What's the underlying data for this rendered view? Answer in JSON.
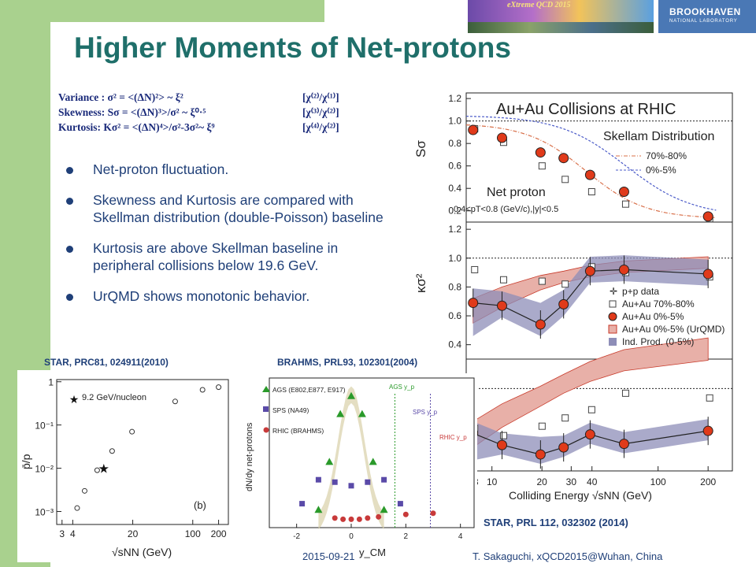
{
  "slide": {
    "title": "Higher Moments of Net-protons",
    "banner_text": "eXtreme QCD 2015",
    "logo": {
      "main": "BROOKHAVEN",
      "sub": "NATIONAL LABORATORY"
    },
    "formulas": [
      {
        "left": "Variance :   σ² = <(ΔN)²> ~ ξ²",
        "right": "[χ⁽²⁾/χ⁽¹⁾]"
      },
      {
        "left": "Skewness:  Sσ = <(ΔN)³>/σ² ~ ξ⁰·⁵",
        "right": "[χ⁽³⁾/χ⁽²⁾]"
      },
      {
        "left": "Kurtosis:  Kσ² = <(ΔN)⁴>/σ²-3σ²~ ξ⁹",
        "right": "[χ⁽⁴⁾/χ⁽²⁾]"
      }
    ],
    "bullets": [
      "Net-proton fluctuation.",
      "Skewness and Kurtosis are compared with Skellman distribution (double-Poisson) baseline",
      "Kurtosis are above Skellman baseline in peripheral collisions below 19.6 GeV.",
      "UrQMD shows monotonic behavior."
    ],
    "refs": {
      "left": "STAR, PRC81, 024911(2010)",
      "middle": "BRAHMS, PRL93, 102301(2004)",
      "right": "STAR, PRL 112, 032302 (2014)"
    },
    "footer": {
      "date": "2015-09-21",
      "author": "T. Sakaguchi, xQCD2015@Wuhan, China"
    }
  },
  "chart_data": [
    {
      "type": "scatter",
      "title": "Au+Au Collisions at RHIC",
      "annotations": [
        "Skellam Distribution",
        "Net proton",
        "0.4<pT<0.8 (GeV/c),|y|<0.5"
      ],
      "xlabel": "Colliding Energy √sNN (GeV)",
      "x_ticks": [
        "8",
        "10",
        "20",
        "30",
        "40",
        "100",
        "200"
      ],
      "panels": [
        {
          "ylabel": "Sσ",
          "yticks": [
            "0.2",
            "0.4",
            "0.6",
            "0.8",
            "1.0",
            "1.2"
          ],
          "ylim": [
            0.1,
            1.25
          ],
          "reference_line": 1.0,
          "legend": [
            "70%-80%",
            "0%-5%"
          ],
          "series": [
            {
              "name": "0%-5%",
              "x": [
                7.7,
                11.5,
                19.6,
                27,
                39,
                62.4,
                200
              ],
              "y": [
                0.92,
                0.85,
                0.72,
                0.67,
                0.52,
                0.37,
                0.15
              ]
            },
            {
              "name": "70%-80%",
              "x": [
                7.7,
                11.5,
                19.6,
                27,
                39,
                62.4,
                200
              ],
              "y": [
                0.93,
                0.81,
                0.6,
                0.48,
                0.37,
                0.26,
                0.13
              ]
            }
          ]
        },
        {
          "ylabel": "κσ²",
          "yticks": [
            "0.4",
            "0.6",
            "0.8",
            "1.0",
            "1.2"
          ],
          "ylim": [
            0.3,
            1.25
          ],
          "reference_line": 1.0,
          "legend": [
            "p+p data",
            "Au+Au 70%-80%",
            "Au+Au 0%-5%",
            "Au+Au 0%-5% (UrQMD)",
            "Ind. Prod. (0-5%)"
          ],
          "series": [
            {
              "name": "Au+Au 0%-5%",
              "x": [
                7.7,
                11.5,
                19.6,
                27,
                39,
                62.4,
                200
              ],
              "y": [
                0.69,
                0.67,
                0.54,
                0.68,
                0.91,
                0.92,
                0.89
              ]
            },
            {
              "name": "Au+Au 70%-80%",
              "x": [
                7.7,
                11.5,
                19.6,
                27,
                39,
                62.4,
                200
              ],
              "y": [
                0.92,
                0.85,
                0.84,
                0.82,
                0.94,
                0.9,
                0.87
              ]
            }
          ]
        },
        {
          "series": [
            {
              "name": "Au+Au 0%-5%",
              "x": [
                7.7,
                11.5,
                19.6,
                27,
                39,
                62.4,
                200
              ],
              "y": [
                0.62,
                0.52,
                0.44,
                0.5,
                0.61,
                0.53,
                0.64
              ]
            },
            {
              "name": "Au+Au 70%-80%",
              "x": [
                7.7,
                11.5,
                19.6,
                27,
                39,
                62.4,
                200
              ],
              "y": [
                0.66,
                0.6,
                0.68,
                0.75,
                0.82,
                0.96,
                0.92
              ]
            }
          ]
        }
      ]
    },
    {
      "type": "scatter",
      "xlabel": "√sNN (GeV)",
      "ylabel": "p̄/p",
      "x_ticks": [
        "3",
        "4",
        "20",
        "100",
        "200"
      ],
      "y_ticks": [
        "10⁻³",
        "10⁻²",
        "10⁻¹",
        "1"
      ],
      "legend": [
        "9.2 GeV/nucleon"
      ],
      "panel_label": "(b)",
      "series": [
        {
          "name": "data",
          "x": [
            4.5,
            5.5,
            7.7,
            9.2,
            11.5,
            19.6,
            62.4,
            130,
            200
          ],
          "y": [
            0.0012,
            0.003,
            0.009,
            0.01,
            0.025,
            0.07,
            0.35,
            0.65,
            0.75
          ]
        }
      ]
    },
    {
      "type": "scatter",
      "xlabel": "y_CM",
      "ylabel": "dN/dy net-protons",
      "x_ticks": [
        "-2",
        "0",
        "2",
        "4"
      ],
      "legend": [
        "AGS (E802,E877, E917)",
        "SPS (NA49)",
        "RHIC (BRAHMS)"
      ],
      "annotations": [
        "AGS y_p",
        "SPS y_p",
        "RHIC y_p"
      ],
      "series": [
        {
          "name": "AGS",
          "x": [
            -1.2,
            -0.8,
            -0.4,
            0,
            0.4,
            0.8,
            1.2
          ],
          "y": [
            15,
            55,
            95,
            110,
            95,
            55,
            15
          ]
        },
        {
          "name": "SPS",
          "x": [
            -1.8,
            -1.2,
            -0.6,
            0,
            0.6,
            1.2,
            1.8
          ],
          "y": [
            20,
            40,
            38,
            35,
            38,
            40,
            20
          ]
        },
        {
          "name": "RHIC",
          "x": [
            -0.6,
            -0.3,
            0,
            0.3,
            0.6,
            1,
            2,
            3
          ],
          "y": [
            8,
            7,
            7,
            7,
            8,
            9,
            11,
            12
          ]
        }
      ]
    }
  ]
}
